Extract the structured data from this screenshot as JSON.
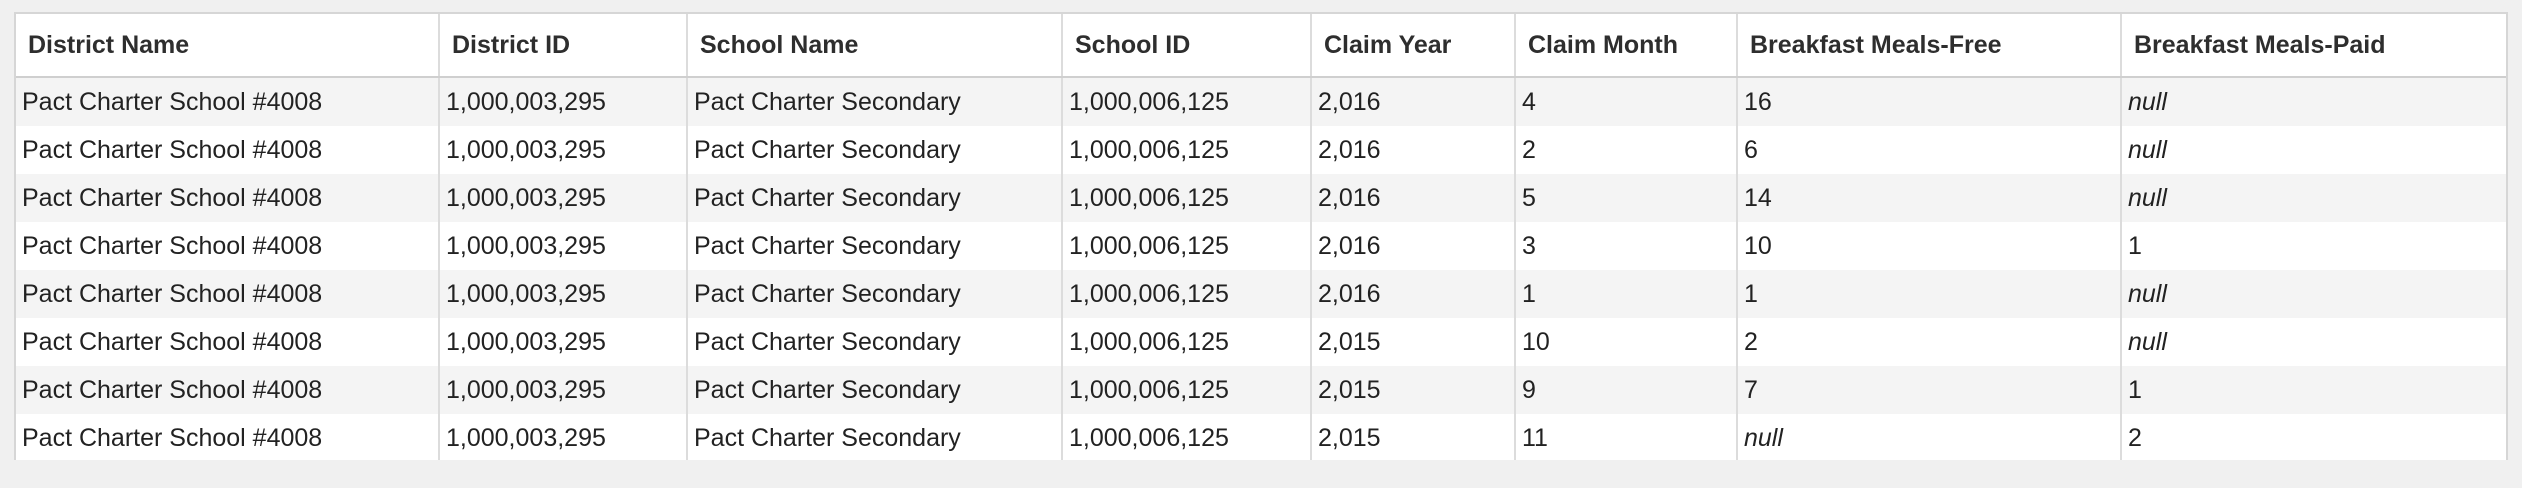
{
  "table": {
    "columns": [
      "District Name",
      "District ID",
      "School Name",
      "School ID",
      "Claim Year",
      "Claim Month",
      "Breakfast Meals-Free",
      "Breakfast Meals-Paid"
    ],
    "rows": [
      [
        "Pact Charter School #4008",
        "1,000,003,295",
        "Pact Charter Secondary",
        "1,000,006,125",
        "2,016",
        "4",
        "16",
        "null"
      ],
      [
        "Pact Charter School #4008",
        "1,000,003,295",
        "Pact Charter Secondary",
        "1,000,006,125",
        "2,016",
        "2",
        "6",
        "null"
      ],
      [
        "Pact Charter School #4008",
        "1,000,003,295",
        "Pact Charter Secondary",
        "1,000,006,125",
        "2,016",
        "5",
        "14",
        "null"
      ],
      [
        "Pact Charter School #4008",
        "1,000,003,295",
        "Pact Charter Secondary",
        "1,000,006,125",
        "2,016",
        "3",
        "10",
        "1"
      ],
      [
        "Pact Charter School #4008",
        "1,000,003,295",
        "Pact Charter Secondary",
        "1,000,006,125",
        "2,016",
        "1",
        "1",
        "null"
      ],
      [
        "Pact Charter School #4008",
        "1,000,003,295",
        "Pact Charter Secondary",
        "1,000,006,125",
        "2,015",
        "10",
        "2",
        "null"
      ],
      [
        "Pact Charter School #4008",
        "1,000,003,295",
        "Pact Charter Secondary",
        "1,000,006,125",
        "2,015",
        "9",
        "7",
        "1"
      ],
      [
        "Pact Charter School #4008",
        "1,000,003,295",
        "Pact Charter Secondary",
        "1,000,006,125",
        "2,015",
        "11",
        "null",
        "2"
      ]
    ]
  },
  "colors": {
    "header_bg": "#ffffff",
    "row_alt_bg": "#f4f4f4",
    "row_bg": "#ffffff",
    "border": "#dcdcdc",
    "canvas_bg": "#f0f0f0"
  }
}
